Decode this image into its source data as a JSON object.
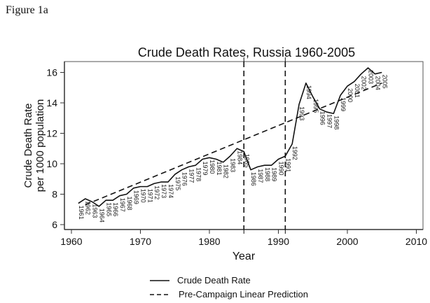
{
  "figure_label": "Figure 1a",
  "chart_data": {
    "type": "line",
    "title": "Crude Death Rates, Russia 1960-2005",
    "xlabel": "Year",
    "ylabel_lines": [
      "Crude Death Rate",
      "per 1000 population"
    ],
    "xlim": [
      1958,
      2011
    ],
    "ylim": [
      5.6,
      16.7
    ],
    "x_ticks": [
      1960,
      1970,
      1980,
      1990,
      2000,
      2010
    ],
    "y_ticks": [
      6,
      8,
      10,
      12,
      14,
      16
    ],
    "grid": false,
    "legend_position": "bottom-center",
    "vertical_reference_lines": [
      1985,
      1991
    ],
    "series": [
      {
        "name": "Crude Death Rate",
        "style": "solid",
        "labeled_points": true,
        "x": [
          1961,
          1962,
          1963,
          1964,
          1965,
          1966,
          1967,
          1968,
          1969,
          1970,
          1971,
          1972,
          1973,
          1974,
          1975,
          1976,
          1977,
          1978,
          1979,
          1980,
          1981,
          1982,
          1983,
          1984,
          1985,
          1986,
          1987,
          1988,
          1989,
          1990,
          1991,
          1992,
          1993,
          1994,
          1995,
          1996,
          1997,
          1998,
          1999,
          2000,
          2001,
          2002,
          2003,
          2004,
          2005
        ],
        "y": [
          7.4,
          7.7,
          7.5,
          7.2,
          7.6,
          7.6,
          7.9,
          8.0,
          8.4,
          8.5,
          8.5,
          8.7,
          8.8,
          8.8,
          9.3,
          9.6,
          9.8,
          9.9,
          10.3,
          10.4,
          10.3,
          10.1,
          10.5,
          11.0,
          10.8,
          9.6,
          9.8,
          9.9,
          9.9,
          10.3,
          10.5,
          11.3,
          13.9,
          15.3,
          14.4,
          13.6,
          13.4,
          13.3,
          14.5,
          15.1,
          15.4,
          15.9,
          16.3,
          15.9,
          16.0
        ]
      },
      {
        "name": "Pre-Campaign Linear Prediction",
        "style": "dashed",
        "x": [
          1962,
          2005
        ],
        "y": [
          7.3,
          15.3
        ]
      }
    ]
  }
}
